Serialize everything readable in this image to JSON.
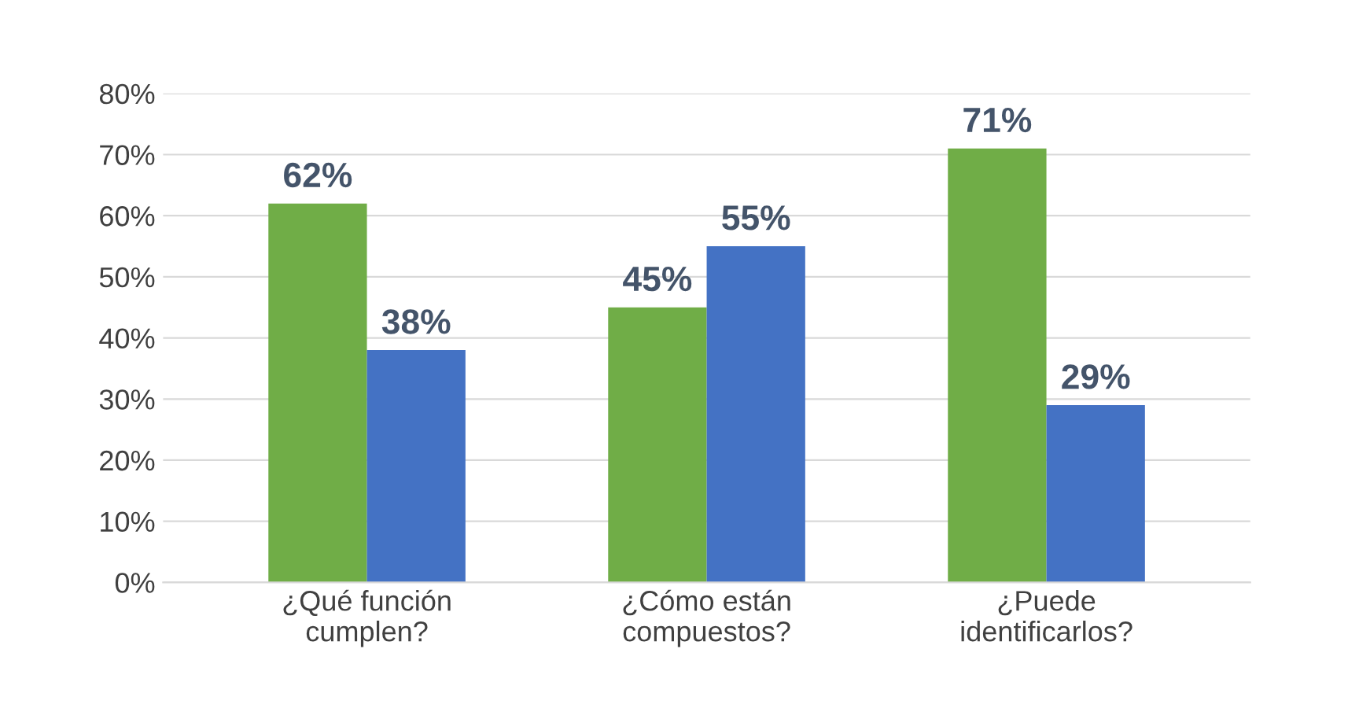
{
  "chart_data": {
    "type": "bar",
    "categories": [
      "¿Qué función\ncumplen?",
      "¿Cómo están\ncompuestos?",
      "¿Puede\nidentificarlos?"
    ],
    "series": [
      {
        "color": "#70ad47",
        "values": [
          62,
          45,
          71
        ],
        "value_labels": [
          "62%",
          "45%",
          "71%"
        ]
      },
      {
        "color": "#4472c4",
        "values": [
          38,
          55,
          29
        ],
        "value_labels": [
          "38%",
          "55%",
          "29%"
        ]
      }
    ],
    "ylim": [
      0,
      80
    ],
    "yticks": [
      {
        "value": 0,
        "label": "0%"
      },
      {
        "value": 10,
        "label": "10%"
      },
      {
        "value": 20,
        "label": "20%"
      },
      {
        "value": 30,
        "label": "30%"
      },
      {
        "value": 40,
        "label": "40%"
      },
      {
        "value": 50,
        "label": "50%"
      },
      {
        "value": 60,
        "label": "60%"
      },
      {
        "value": 70,
        "label": "70%"
      },
      {
        "value": 80,
        "label": "80%"
      }
    ],
    "grid": "y"
  }
}
